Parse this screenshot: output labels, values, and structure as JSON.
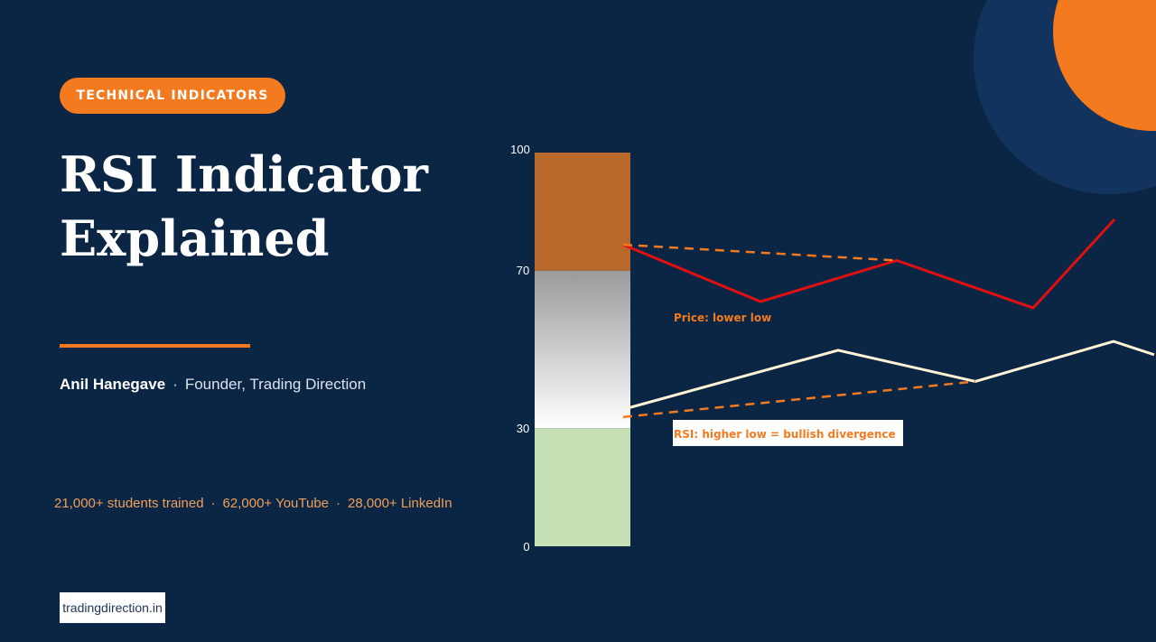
{
  "badge": "TECHNICAL INDICATORS",
  "title": {
    "line1": "RSI Indicator",
    "line2": "Explained"
  },
  "author": {
    "name": "Anil Hanegave",
    "separator": "·",
    "role": "Founder, Trading Direction"
  },
  "stats": {
    "item1": "21,000+ students trained",
    "item2": "62,000+ YouTube",
    "item3": "28,000+ LinkedIn",
    "separator": "·"
  },
  "website": "tradingdirection.in",
  "colors": {
    "background": "#0b2545",
    "accent": "#f47a20",
    "overbought": "#b8682b",
    "oversold": "#c5e0b4",
    "price_line": "#e01010",
    "rsi_line": "#fff3d6"
  },
  "chart_data": {
    "type": "line",
    "scale_ticks": [
      "100",
      "70",
      "30",
      "0"
    ],
    "zones": [
      {
        "name": "overbought",
        "from": 70,
        "to": 100
      },
      {
        "name": "neutral",
        "from": 30,
        "to": 70
      },
      {
        "name": "oversold",
        "from": 0,
        "to": 30
      }
    ],
    "series": [
      {
        "key": "price",
        "values": [
          80,
          62,
          75,
          60,
          88
        ]
      },
      {
        "key": "rsi",
        "values": [
          35,
          48,
          41,
          50,
          47
        ]
      }
    ],
    "trendlines": [
      {
        "key": "price",
        "from": 80,
        "to": 75
      },
      {
        "key": "rsi",
        "from": 33,
        "to": 41
      }
    ],
    "annotations": {
      "price": "Price: lower low",
      "rsi": "RSI: higher low = bullish divergence"
    }
  }
}
